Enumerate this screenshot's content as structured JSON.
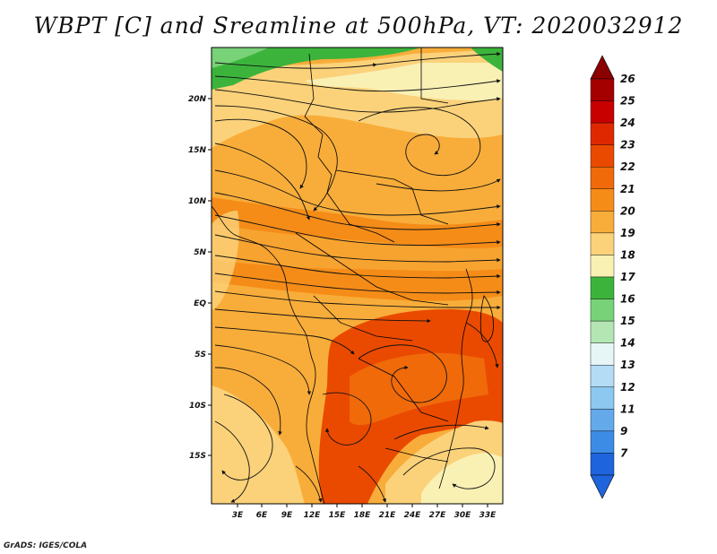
{
  "title": "WBPT [C] and Sreamline at 500hPa, VT: 2020032912",
  "credit": "GrADS: IGES/COLA",
  "map": {
    "lat_labels": [
      "20N",
      "15N",
      "10N",
      "5N",
      "EQ",
      "5S",
      "10S",
      "15S"
    ],
    "lon_labels": [
      "3E",
      "6E",
      "9E",
      "12E",
      "15E",
      "18E",
      "21E",
      "24E",
      "27E",
      "30E",
      "33E"
    ]
  },
  "colorbar": {
    "labels": [
      "26",
      "25",
      "24",
      "23",
      "22",
      "21",
      "20",
      "19",
      "18",
      "17",
      "16",
      "15",
      "14",
      "13",
      "12",
      "11",
      "9",
      "7"
    ],
    "colors": [
      "#a50000",
      "#c80000",
      "#e02800",
      "#ea4a00",
      "#f06a0a",
      "#f58c18",
      "#f8ad3a",
      "#fbd27a",
      "#f9f0b4",
      "#3cb43c",
      "#78d278",
      "#b4e6b4",
      "#e6f5f5",
      "#b4dcf5",
      "#8cc8f0",
      "#64aaeb",
      "#3c8ce6",
      "#1e64dc"
    ]
  }
}
